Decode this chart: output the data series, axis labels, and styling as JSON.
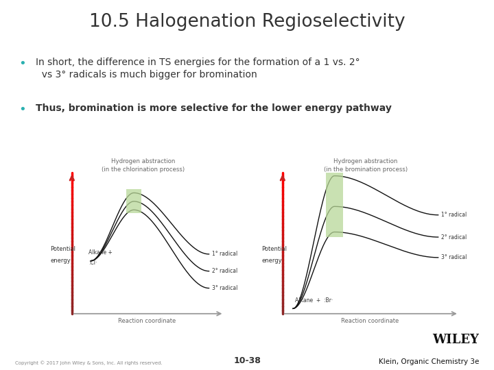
{
  "title": "10.5 Halogenation Regioselectivity",
  "bullet1_normal": "In short, the difference in TS energies for the formation of a 1 vs. 2°\n  vs 3° radicals is much bigger for bromination",
  "bullet2_bold": "Thus, bromination is more selective for the lower energy pathway",
  "left_title_line1": "Hydrogen abstraction",
  "left_title_line2": "(in the chlorination process)",
  "right_title_line1": "Hydrogen abstraction",
  "right_title_line2": "(in the bromination process)",
  "xlabel": "Reaction coordinate",
  "ylabel_line1": "Potential",
  "ylabel_line2": "energy",
  "left_reactant_line1": "Alkane +",
  "left_reactant_line2": ":Cl·",
  "right_reactant": "Alkane  +  :Br·",
  "label_1": "1° radical",
  "label_2": "2° radical",
  "label_3": "3° radical",
  "footer_left": "Copyright © 2017 John Wiley & Sons, Inc. All rights reserved.",
  "footer_center": "10-38",
  "footer_right_top": "WILEY",
  "footer_right_bottom": "Klein, Organic Chemistry 3e",
  "bg_color": "#ffffff",
  "title_color": "#333333",
  "bullet_color": "#333333",
  "bullet_dot_color": "#2ab0b0",
  "arrow_red_top": "#cc2222",
  "arrow_red_bottom": "#e8a0a0",
  "curve_color": "#111111",
  "box_color": "#b8d898",
  "axis_color": "#999999",
  "text_color": "#333333",
  "diagram_title_color": "#666666"
}
